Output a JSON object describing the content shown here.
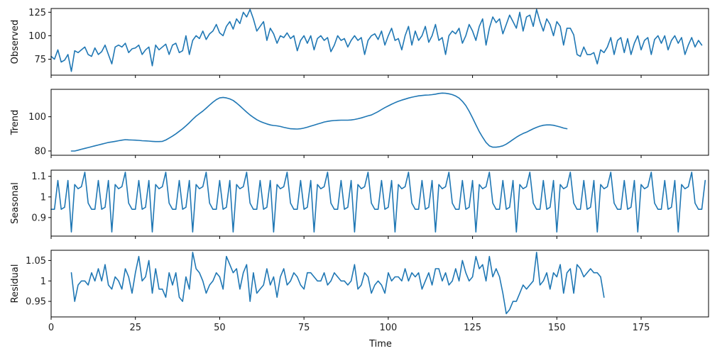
{
  "chart_data": [
    {
      "type": "line",
      "ylabel": "Observed",
      "ylim": [
        58,
        129
      ],
      "yticks": [
        75,
        100,
        125
      ],
      "xlim": [
        0,
        195
      ],
      "show_x_tick_labels": false,
      "color": "#1f77b4",
      "series": [
        {
          "x_start": 0,
          "values": [
            78,
            75,
            85,
            72,
            74,
            80,
            62,
            84,
            82,
            85,
            88,
            80,
            78,
            87,
            80,
            83,
            90,
            80,
            70,
            88,
            90,
            88,
            92,
            82,
            86,
            87,
            90,
            80,
            85,
            88,
            68,
            90,
            85,
            88,
            91,
            80,
            90,
            92,
            82,
            84,
            100,
            80,
            95,
            100,
            97,
            105,
            96,
            102,
            105,
            112,
            103,
            100,
            110,
            115,
            107,
            118,
            113,
            125,
            120,
            128,
            118,
            105,
            110,
            115,
            95,
            108,
            102,
            92,
            100,
            98,
            103,
            97,
            100,
            84,
            95,
            100,
            92,
            100,
            85,
            97,
            100,
            95,
            98,
            83,
            90,
            100,
            95,
            97,
            88,
            95,
            100,
            95,
            98,
            80,
            95,
            100,
            102,
            96,
            105,
            90,
            100,
            108,
            95,
            97,
            85,
            100,
            110,
            90,
            105,
            95,
            100,
            110,
            93,
            100,
            112,
            95,
            98,
            80,
            100,
            105,
            102,
            108,
            92,
            100,
            112,
            105,
            95,
            110,
            118,
            90,
            108,
            120,
            114,
            118,
            102,
            112,
            122,
            115,
            108,
            125,
            105,
            120,
            122,
            110,
            128,
            115,
            105,
            118,
            112,
            100,
            115,
            110,
            90,
            108,
            108,
            101,
            80,
            78,
            88,
            80,
            80,
            82,
            70,
            85,
            82,
            88,
            98,
            80,
            95,
            98,
            82,
            97,
            80,
            92,
            100,
            85,
            95,
            98,
            80,
            96,
            100,
            92,
            100,
            85,
            95,
            100,
            92,
            98,
            80,
            90,
            98,
            88,
            95,
            90
          ]
        }
      ]
    },
    {
      "type": "line",
      "ylabel": "Trend",
      "ylim": [
        77.5,
        116
      ],
      "yticks": [
        80,
        100
      ],
      "xlim": [
        0,
        195
      ],
      "show_x_tick_labels": false,
      "color": "#1f77b4",
      "series": [
        {
          "x_start": 6,
          "values": [
            80.0,
            80.0,
            80.5,
            81.0,
            81.5,
            82.0,
            82.5,
            83.0,
            83.5,
            84.0,
            84.5,
            85.0,
            85.3,
            85.6,
            86.0,
            86.3,
            86.6,
            86.5,
            86.4,
            86.3,
            86.2,
            86.0,
            85.9,
            85.8,
            85.6,
            85.5,
            85.5,
            85.6,
            86.4,
            87.5,
            88.7,
            90.0,
            91.5,
            93.0,
            94.7,
            96.5,
            98.5,
            100.3,
            101.8,
            103.3,
            105.0,
            106.8,
            108.5,
            110.0,
            111.0,
            111.3,
            111.0,
            110.4,
            109.5,
            108.0,
            106.3,
            104.5,
            102.7,
            101.0,
            99.6,
            98.3,
            97.3,
            96.5,
            95.8,
            95.2,
            94.9,
            94.7,
            94.3,
            93.8,
            93.4,
            93.0,
            92.9,
            92.8,
            93.0,
            93.4,
            93.9,
            94.5,
            95.1,
            95.7,
            96.3,
            96.9,
            97.3,
            97.6,
            97.8,
            97.9,
            98.0,
            98.0,
            98.0,
            98.1,
            98.4,
            98.8,
            99.3,
            99.9,
            100.5,
            101.0,
            102.0,
            103.0,
            104.2,
            105.3,
            106.3,
            107.3,
            108.2,
            109.0,
            109.7,
            110.3,
            110.9,
            111.4,
            111.8,
            112.2,
            112.4,
            112.6,
            112.7,
            112.9,
            113.2,
            113.6,
            113.8,
            113.7,
            113.4,
            112.9,
            112.1,
            110.9,
            109.0,
            106.5,
            103.2,
            99.3,
            95.3,
            91.3,
            88.0,
            85.0,
            83.0,
            82.2,
            82.2,
            82.5,
            83.0,
            84.0,
            85.3,
            86.7,
            88.0,
            89.2,
            90.2,
            91.0,
            92.0,
            93.0,
            93.8,
            94.5,
            95.0,
            95.2,
            95.2,
            95.0,
            94.5,
            94.0,
            93.4,
            93.0
          ]
        }
      ]
    },
    {
      "type": "line",
      "ylabel": "Seasonal",
      "ylim": [
        0.81,
        1.13
      ],
      "yticks": [
        0.9,
        1.0,
        1.1
      ],
      "xlim": [
        0,
        195
      ],
      "show_x_tick_labels": false,
      "color": "#1f77b4",
      "series": [
        {
          "x_start": 0,
          "period": 12,
          "values": [
            0.94,
            0.94,
            1.08,
            0.94,
            0.95,
            1.08,
            0.83,
            1.06,
            1.04,
            1.05,
            1.12,
            0.97
          ]
        }
      ]
    },
    {
      "type": "line",
      "ylabel": "Residual",
      "xlabel": "Time",
      "ylim": [
        0.912,
        1.075
      ],
      "yticks": [
        0.95,
        1.0,
        1.05
      ],
      "xlim": [
        0,
        195
      ],
      "xticks": [
        0,
        25,
        50,
        75,
        100,
        125,
        150,
        175
      ],
      "show_x_tick_labels": true,
      "color": "#1f77b4",
      "series": [
        {
          "x_start": 6,
          "values": [
            1.02,
            0.95,
            0.99,
            1.0,
            1.0,
            0.99,
            1.02,
            1.0,
            1.03,
            1.0,
            1.04,
            0.99,
            0.98,
            1.01,
            1.0,
            0.98,
            1.03,
            1.01,
            0.97,
            1.02,
            1.06,
            1.0,
            1.01,
            1.05,
            0.97,
            1.03,
            0.98,
            0.98,
            0.96,
            1.02,
            0.99,
            1.02,
            0.96,
            0.95,
            1.01,
            0.98,
            1.07,
            1.03,
            1.02,
            1.0,
            0.97,
            0.99,
            1.0,
            1.02,
            1.01,
            0.98,
            1.06,
            1.04,
            1.02,
            1.03,
            0.98,
            1.02,
            1.04,
            0.95,
            1.02,
            0.97,
            0.98,
            0.99,
            1.03,
            0.99,
            1.01,
            0.96,
            1.01,
            1.03,
            0.99,
            1.0,
            1.02,
            1.01,
            0.99,
            0.98,
            1.02,
            1.02,
            1.01,
            1.0,
            1.0,
            1.02,
            0.99,
            1.0,
            1.02,
            1.01,
            1.0,
            1.0,
            0.99,
            1.0,
            1.04,
            0.98,
            0.99,
            1.02,
            1.01,
            0.97,
            0.99,
            1.0,
            0.99,
            0.97,
            1.02,
            1.0,
            1.01,
            1.01,
            1.0,
            1.03,
            1.0,
            1.02,
            1.01,
            1.02,
            0.98,
            1.0,
            1.02,
            0.99,
            1.03,
            1.03,
            1.0,
            1.02,
            0.99,
            1.0,
            1.03,
            1.0,
            1.05,
            1.02,
            1.0,
            1.01,
            1.06,
            1.03,
            1.04,
            1.0,
            1.06,
            1.01,
            1.03,
            1.01,
            0.97,
            0.92,
            0.93,
            0.95,
            0.95,
            0.97,
            0.99,
            0.98,
            0.99,
            1.0,
            1.07,
            0.99,
            1.0,
            1.02,
            0.98,
            1.02,
            1.01,
            1.04,
            0.97,
            1.02,
            1.03,
            0.97,
            1.04,
            1.03,
            1.01,
            1.02,
            1.03,
            1.02,
            1.02,
            1.01,
            0.96
          ]
        }
      ]
    }
  ]
}
